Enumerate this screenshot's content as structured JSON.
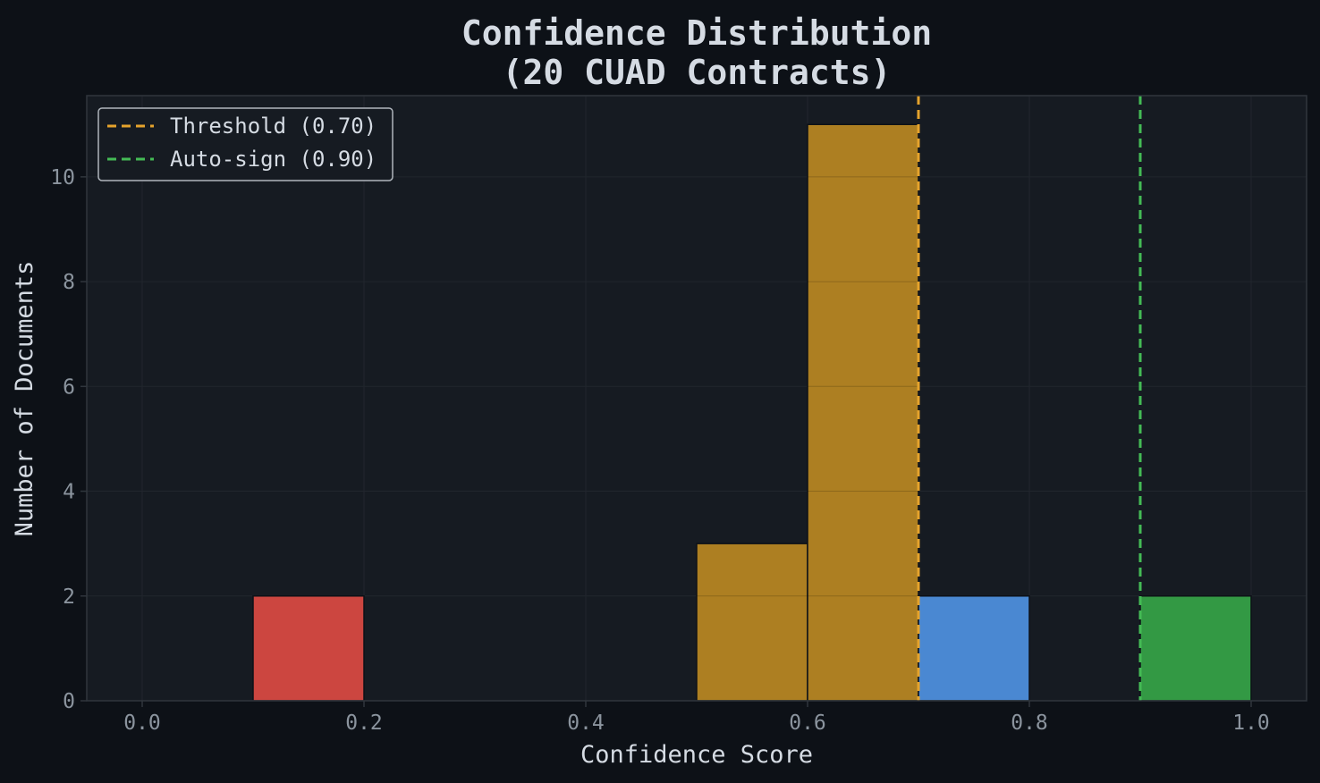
{
  "chart_data": {
    "type": "bar",
    "title": [
      "Confidence Distribution",
      "(20 CUAD Contracts)"
    ],
    "xlabel": "Confidence Score",
    "ylabel": "Number of Documents",
    "xlim": [
      -0.05,
      1.05
    ],
    "ylim": [
      0,
      11.55
    ],
    "xticks": [
      0.0,
      0.2,
      0.4,
      0.6,
      0.8,
      1.0
    ],
    "xtick_labels": [
      "0.0",
      "0.2",
      "0.4",
      "0.6",
      "0.8",
      "1.0"
    ],
    "yticks": [
      0,
      2,
      4,
      6,
      8,
      10
    ],
    "ytick_labels": [
      "0",
      "2",
      "4",
      "6",
      "8",
      "10"
    ],
    "grid": true,
    "legend_position": "top-left",
    "bins": [
      {
        "x0": 0.1,
        "x1": 0.2,
        "count": 2,
        "color": "#cc4640"
      },
      {
        "x0": 0.5,
        "x1": 0.6,
        "count": 3,
        "color": "#ad7f22"
      },
      {
        "x0": 0.6,
        "x1": 0.7,
        "count": 11,
        "color": "#ad7f22"
      },
      {
        "x0": 0.7,
        "x1": 0.8,
        "count": 2,
        "color": "#4a88d2"
      },
      {
        "x0": 0.9,
        "x1": 1.0,
        "count": 2,
        "color": "#339944"
      }
    ],
    "reference_lines": [
      {
        "name": "Threshold (0.70)",
        "x": 0.7,
        "color": "#e5a32c"
      },
      {
        "name": "Auto-sign (0.90)",
        "x": 0.9,
        "color": "#44bb55"
      }
    ],
    "colors": {
      "background": "#0d1117",
      "plot_background": "#161b22",
      "axis": "#30363d",
      "grid": "#21262d",
      "bar_edge": "#0d1117"
    }
  }
}
